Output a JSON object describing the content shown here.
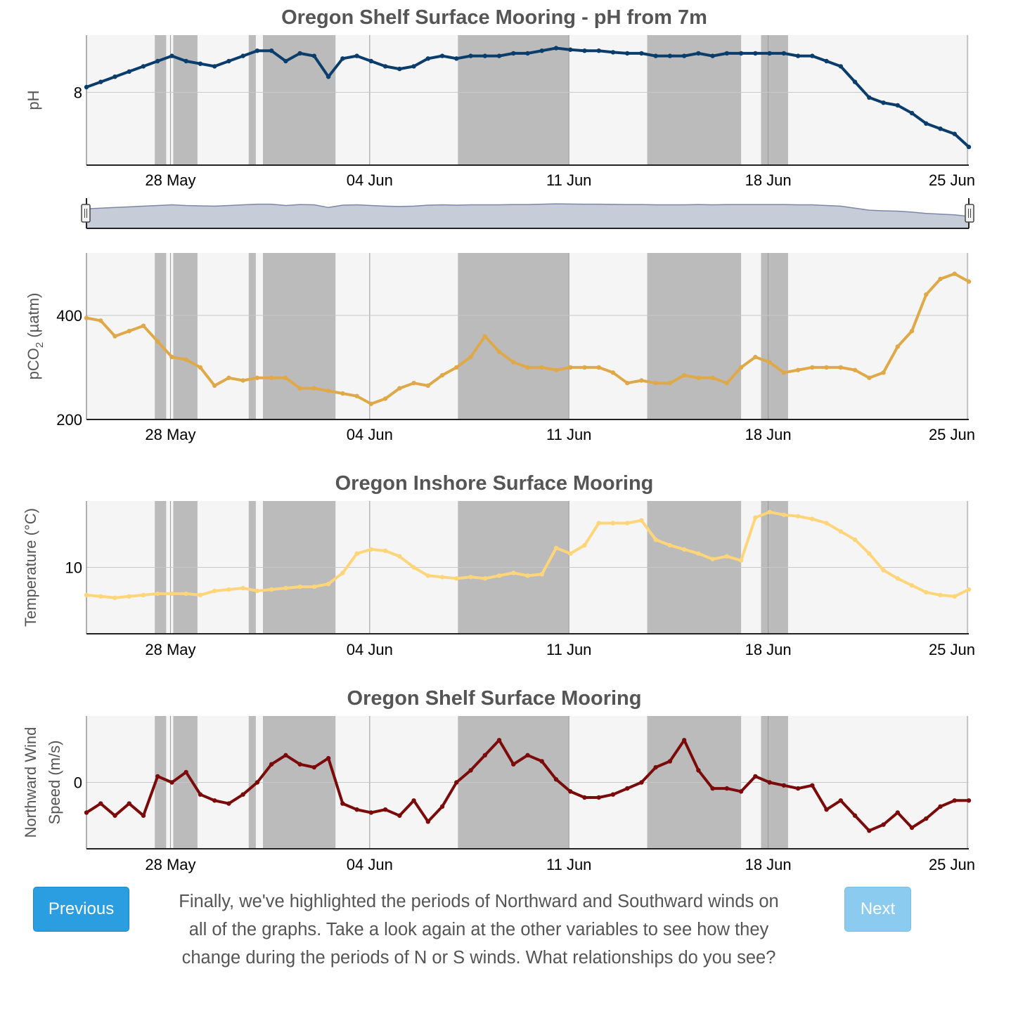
{
  "chart_data": [
    {
      "id": "ph",
      "type": "line",
      "title": "Oregon Shelf Surface Mooring - pH from 7m",
      "ylabel": "pH",
      "yticks": [
        8
      ],
      "ylim": [
        7.86,
        8.11
      ],
      "x_start": "2025-05-25",
      "x_end": "2025-06-25",
      "xticks": [
        "28 May",
        "04 Jun",
        "11 Jun",
        "18 Jun",
        "25 Jun"
      ],
      "color": "#0a3d6b",
      "series": [
        {
          "x": [
            0,
            0.5,
            1,
            1.5,
            2,
            2.5,
            3,
            3.5,
            4,
            4.5,
            5,
            5.5,
            6,
            6.5,
            7,
            7.5,
            8,
            8.5,
            9,
            9.5,
            10,
            10.5,
            11,
            11.5,
            12,
            12.5,
            13,
            13.5,
            14,
            14.5,
            15,
            15.5,
            16,
            16.5,
            17,
            17.5,
            18,
            18.5,
            19,
            19.5,
            20,
            20.5,
            21,
            21.5,
            22,
            22.5,
            23,
            23.5,
            24,
            24.5,
            25,
            25.5,
            26,
            26.5,
            27,
            27.5,
            28,
            28.5,
            29,
            29.5,
            30,
            30.5,
            31
          ],
          "values": [
            8.01,
            8.02,
            8.03,
            8.04,
            8.05,
            8.06,
            8.07,
            8.06,
            8.055,
            8.05,
            8.06,
            8.07,
            8.08,
            8.08,
            8.06,
            8.075,
            8.07,
            8.03,
            8.065,
            8.07,
            8.06,
            8.05,
            8.045,
            8.05,
            8.065,
            8.07,
            8.065,
            8.07,
            8.07,
            8.07,
            8.075,
            8.075,
            8.08,
            8.085,
            8.082,
            8.08,
            8.08,
            8.077,
            8.075,
            8.075,
            8.07,
            8.07,
            8.07,
            8.075,
            8.07,
            8.075,
            8.075,
            8.075,
            8.075,
            8.075,
            8.07,
            8.07,
            8.06,
            8.05,
            8.02,
            7.99,
            7.98,
            7.975,
            7.96,
            7.94,
            7.93,
            7.92,
            7.895
          ]
        }
      ]
    },
    {
      "id": "pco2",
      "type": "line",
      "ylabel": "pCO2 (µatm)",
      "ylabel_main": "pCO",
      "ylabel_sub": "2",
      "ylabel_unit": "(µatm)",
      "yticks": [
        200,
        400
      ],
      "ylim": [
        200,
        520
      ],
      "x_start": "2025-05-25",
      "x_end": "2025-06-25",
      "xticks": [
        "28 May",
        "04 Jun",
        "11 Jun",
        "18 Jun",
        "25 Jun"
      ],
      "color": "#dfa94a",
      "series": [
        {
          "x": [
            0,
            0.5,
            1,
            1.5,
            2,
            2.5,
            3,
            3.5,
            4,
            4.5,
            5,
            5.5,
            6,
            6.5,
            7,
            7.5,
            8,
            8.5,
            9,
            9.5,
            10,
            10.5,
            11,
            11.5,
            12,
            12.5,
            13,
            13.5,
            14,
            14.5,
            15,
            15.5,
            16,
            16.5,
            17,
            17.5,
            18,
            18.5,
            19,
            19.5,
            20,
            20.5,
            21,
            21.5,
            22,
            22.5,
            23,
            23.5,
            24,
            24.5,
            25,
            25.5,
            26,
            26.5,
            27,
            27.5,
            28,
            28.5,
            29,
            29.5,
            30,
            30.5,
            31
          ],
          "values": [
            395,
            390,
            360,
            370,
            380,
            350,
            320,
            315,
            300,
            265,
            280,
            275,
            280,
            280,
            280,
            260,
            260,
            255,
            250,
            245,
            230,
            240,
            260,
            270,
            265,
            285,
            300,
            320,
            360,
            330,
            310,
            300,
            300,
            295,
            300,
            300,
            300,
            290,
            270,
            275,
            270,
            270,
            285,
            280,
            280,
            270,
            300,
            320,
            310,
            290,
            295,
            300,
            300,
            300,
            295,
            280,
            290,
            340,
            370,
            440,
            470,
            480,
            465
          ]
        }
      ]
    },
    {
      "id": "temperature",
      "type": "line",
      "title": "Oregon Inshore Surface Mooring",
      "ylabel": "Temperature (°C)",
      "yticks": [
        10
      ],
      "ylim": [
        7.6,
        12.4
      ],
      "x_start": "2025-05-25",
      "x_end": "2025-06-25",
      "xticks": [
        "28 May",
        "04 Jun",
        "11 Jun",
        "18 Jun",
        "25 Jun"
      ],
      "color": "#ffd57a",
      "series": [
        {
          "x": [
            0,
            0.5,
            1,
            1.5,
            2,
            2.5,
            3,
            3.5,
            4,
            4.5,
            5,
            5.5,
            6,
            6.5,
            7,
            7.5,
            8,
            8.5,
            9,
            9.5,
            10,
            10.5,
            11,
            11.5,
            12,
            12.5,
            13,
            13.5,
            14,
            14.5,
            15,
            15.5,
            16,
            16.5,
            17,
            17.5,
            18,
            18.5,
            19,
            19.5,
            20,
            20.5,
            21,
            21.5,
            22,
            22.5,
            23,
            23.5,
            24,
            24.5,
            25,
            25.5,
            26,
            26.5,
            27,
            27.5,
            28,
            28.5,
            29,
            29.5,
            30,
            30.5,
            31
          ],
          "values": [
            9.0,
            8.95,
            8.9,
            8.95,
            9.0,
            9.05,
            9.05,
            9.05,
            9.0,
            9.15,
            9.2,
            9.25,
            9.15,
            9.2,
            9.25,
            9.3,
            9.3,
            9.4,
            9.8,
            10.5,
            10.65,
            10.6,
            10.4,
            10.0,
            9.7,
            9.65,
            9.6,
            9.65,
            9.6,
            9.7,
            9.8,
            9.7,
            9.75,
            10.7,
            10.5,
            10.8,
            11.6,
            11.6,
            11.6,
            11.7,
            11.0,
            10.8,
            10.65,
            10.5,
            10.3,
            10.4,
            10.25,
            11.8,
            12.0,
            11.9,
            11.85,
            11.75,
            11.6,
            11.3,
            11.0,
            10.5,
            9.9,
            9.6,
            9.35,
            9.1,
            9.0,
            8.95,
            9.2
          ]
        }
      ]
    },
    {
      "id": "wind",
      "type": "line",
      "title": "Oregon Shelf Surface Mooring",
      "ylabel": "Northward Wind Speed (m/s)",
      "ylabel_line1": "Northward Wind",
      "ylabel_line2": "Speed (m/s)",
      "yticks": [
        0
      ],
      "ylim": [
        -11,
        11
      ],
      "x_start": "2025-05-25",
      "x_end": "2025-06-25",
      "xticks": [
        "28 May",
        "04 Jun",
        "11 Jun",
        "18 Jun",
        "25 Jun"
      ],
      "color": "#7b0a0a",
      "series": [
        {
          "x": [
            0,
            0.5,
            1,
            1.5,
            2,
            2.5,
            3,
            3.5,
            4,
            4.5,
            5,
            5.5,
            6,
            6.5,
            7,
            7.5,
            8,
            8.5,
            9,
            9.5,
            10,
            10.5,
            11,
            11.5,
            12,
            12.5,
            13,
            13.5,
            14,
            14.5,
            15,
            15.5,
            16,
            16.5,
            17,
            17.5,
            18,
            18.5,
            19,
            19.5,
            20,
            20.5,
            21,
            21.5,
            22,
            22.5,
            23,
            23.5,
            24,
            24.5,
            25,
            25.5,
            26,
            26.5,
            27,
            27.5,
            28,
            28.5,
            29,
            29.5,
            30,
            30.5,
            31
          ],
          "values": [
            -5,
            -3.5,
            -5.5,
            -3.5,
            -5.5,
            1,
            0,
            1.7,
            -2,
            -3,
            -3.5,
            -2,
            0,
            3,
            4.5,
            3,
            2.5,
            4,
            -3.5,
            -4.5,
            -5,
            -4.5,
            -5.5,
            -3,
            -6.5,
            -4,
            0,
            2,
            4.5,
            7,
            3,
            4.5,
            3.5,
            0.5,
            -1.5,
            -2.5,
            -2.5,
            -2,
            -1,
            0,
            2.5,
            3.5,
            7,
            2,
            -1,
            -1,
            -1.5,
            1,
            0,
            -0.5,
            -1,
            -0.5,
            -4.5,
            -3,
            -5.5,
            -8,
            -7,
            -5,
            -7.5,
            -6,
            -4,
            -3,
            -3
          ]
        }
      ]
    }
  ],
  "wind_periods": [
    [
      2.4,
      2.8
    ],
    [
      3.05,
      3.9
    ],
    [
      5.7,
      5.95
    ],
    [
      6.2,
      8.75
    ],
    [
      13.05,
      16.95
    ],
    [
      19.7,
      23.0
    ],
    [
      23.7,
      24.65
    ]
  ],
  "navigator": {
    "color": "#7b88a8",
    "fill": "#c7ccd9"
  },
  "buttons": {
    "previous": "Previous",
    "next": "Next"
  },
  "caption": "Finally, we've highlighted the periods of Northward and Southward winds on all of the graphs. Take a look again at the other variables to see how they change during the periods of N or S winds. What relationships do you see?"
}
